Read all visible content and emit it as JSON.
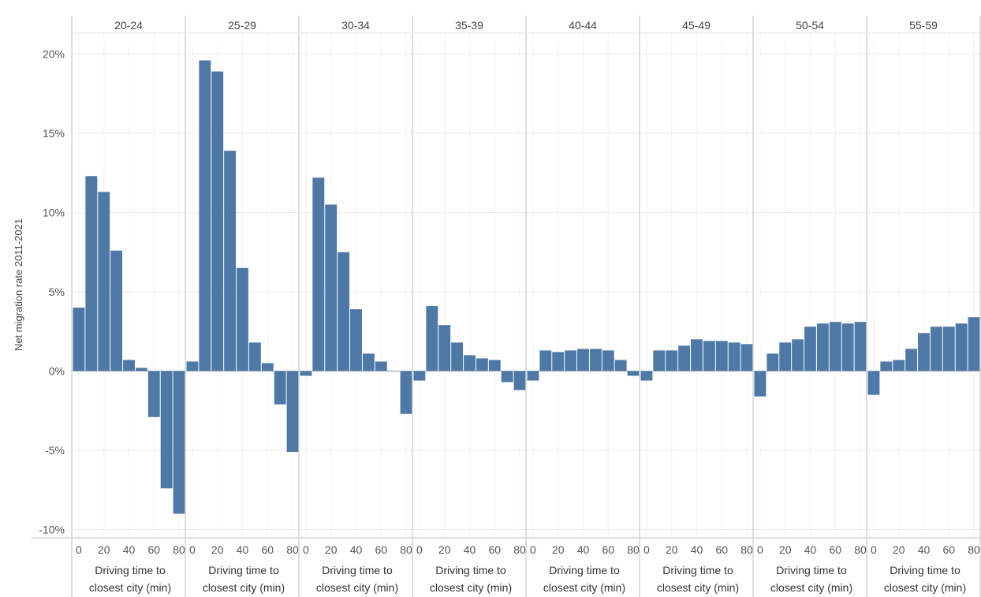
{
  "chart_data": {
    "type": "bar",
    "title": "",
    "ylabel": "Net migration rate 2011-2021",
    "xlabel_lines": [
      "Driving time to",
      "closest city (min)"
    ],
    "ylim": [
      -10.5,
      21
    ],
    "y_ticks": [
      20,
      15,
      10,
      5,
      0,
      -5,
      -10
    ],
    "y_tick_labels": [
      "20%",
      "15%",
      "10%",
      "5%",
      "0%",
      "-5%",
      "-10%"
    ],
    "x_ticks": [
      0,
      20,
      40,
      60,
      80
    ],
    "x_tick_labels": [
      "0",
      "20",
      "40",
      "60",
      "80"
    ],
    "x_bins": [
      0,
      10,
      20,
      30,
      40,
      50,
      60,
      70,
      80,
      90
    ],
    "bar_color": "#4e79a7",
    "grid": true,
    "facets": [
      {
        "label": "20-24",
        "values": [
          4.0,
          12.3,
          11.3,
          7.6,
          0.7,
          0.2,
          -2.9,
          -7.4,
          -9.0
        ]
      },
      {
        "label": "25-29",
        "values": [
          0.6,
          19.6,
          18.9,
          13.9,
          6.5,
          1.8,
          0.5,
          -2.1,
          -5.1
        ]
      },
      {
        "label": "30-34",
        "values": [
          -0.3,
          12.2,
          10.5,
          7.5,
          3.9,
          1.1,
          0.6,
          0.0,
          -2.7
        ]
      },
      {
        "label": "35-39",
        "values": [
          -0.6,
          4.1,
          2.9,
          1.8,
          1.0,
          0.8,
          0.7,
          -0.7,
          -1.2
        ]
      },
      {
        "label": "40-44",
        "values": [
          -0.6,
          1.3,
          1.2,
          1.3,
          1.4,
          1.4,
          1.3,
          0.7,
          -0.3
        ]
      },
      {
        "label": "45-49",
        "values": [
          -0.6,
          1.3,
          1.3,
          1.6,
          2.0,
          1.9,
          1.9,
          1.8,
          1.7
        ]
      },
      {
        "label": "50-54",
        "values": [
          -1.6,
          1.1,
          1.8,
          2.0,
          2.8,
          3.0,
          3.1,
          3.0,
          3.1
        ]
      },
      {
        "label": "55-59",
        "values": [
          -1.5,
          0.6,
          0.7,
          1.4,
          2.4,
          2.8,
          2.8,
          3.0,
          3.4
        ]
      }
    ]
  }
}
